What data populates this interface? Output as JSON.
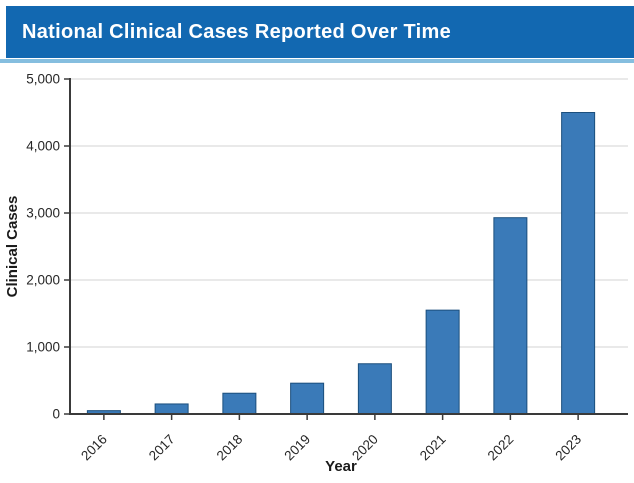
{
  "header": {
    "title": "National Clinical Cases Reported Over Time"
  },
  "colors": {
    "banner_blue": "#1268b1",
    "banner_underline_blue": "#85bedf",
    "bar_fill": "#3a7ab8",
    "bar_edge": "#1b4f7d",
    "gridline_gray": "#dcdcdc",
    "spine_dark": "#3a3a3a",
    "tick_label": "#262626",
    "axis_label": "#1a1a1a",
    "title_text": "#ffffff"
  },
  "chart_data": {
    "type": "bar",
    "title": "National Clinical Cases Reported Over Time",
    "categories": [
      "2016",
      "2017",
      "2018",
      "2019",
      "2020",
      "2021",
      "2022",
      "2023"
    ],
    "values": [
      50,
      150,
      310,
      460,
      750,
      1550,
      2930,
      4500
    ],
    "xlabel": "Year",
    "ylabel": "Clinical Cases",
    "ylim": [
      0,
      5000
    ],
    "yticks": [
      0,
      1000,
      2000,
      3000,
      4000,
      5000
    ],
    "ytick_labels": [
      "0",
      "1,000",
      "2,000",
      "3,000",
      "4,000",
      "5,000"
    ],
    "grid": "horizontal",
    "legend": "none"
  }
}
